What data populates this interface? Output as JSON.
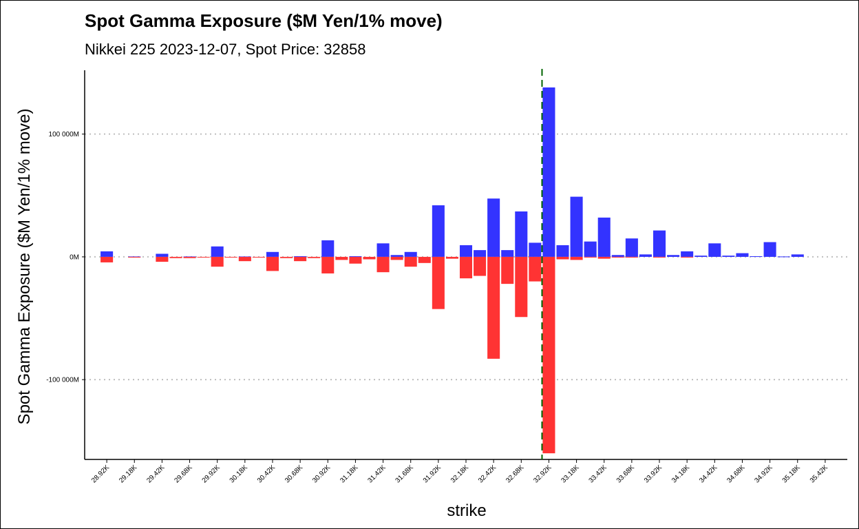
{
  "chart_data": {
    "type": "bar",
    "title": "Spot Gamma Exposure ($M Yen/1% move)",
    "subtitle": "Nikkei 225 2023-12-07, Spot Price: 32858",
    "xlabel": "strike",
    "ylabel": "Spot Gamma Exposure ($M Yen/1% move)",
    "ylim": [
      -165,
      152
    ],
    "y_ticks": [
      {
        "value": 100,
        "label": "100 000M"
      },
      {
        "value": 0,
        "label": "0M"
      },
      {
        "value": -100,
        "label": "-100 000M"
      }
    ],
    "x_range": [
      28720,
      35620
    ],
    "x_ticks": [
      {
        "value": 28920,
        "label": "28.92K"
      },
      {
        "value": 29170,
        "label": "29.18K"
      },
      {
        "value": 29420,
        "label": "29.42K"
      },
      {
        "value": 29670,
        "label": "29.68K"
      },
      {
        "value": 29920,
        "label": "29.92K"
      },
      {
        "value": 30170,
        "label": "30.18K"
      },
      {
        "value": 30420,
        "label": "30.42K"
      },
      {
        "value": 30670,
        "label": "30.68K"
      },
      {
        "value": 30920,
        "label": "30.92K"
      },
      {
        "value": 31170,
        "label": "31.18K"
      },
      {
        "value": 31420,
        "label": "31.42K"
      },
      {
        "value": 31670,
        "label": "31.68K"
      },
      {
        "value": 31920,
        "label": "31.92K"
      },
      {
        "value": 32170,
        "label": "32.18K"
      },
      {
        "value": 32420,
        "label": "32.42K"
      },
      {
        "value": 32670,
        "label": "32.68K"
      },
      {
        "value": 32920,
        "label": "32.92K"
      },
      {
        "value": 33170,
        "label": "33.18K"
      },
      {
        "value": 33420,
        "label": "33.42K"
      },
      {
        "value": 33670,
        "label": "33.68K"
      },
      {
        "value": 33920,
        "label": "33.92K"
      },
      {
        "value": 34170,
        "label": "34.18K"
      },
      {
        "value": 34420,
        "label": "34.42K"
      },
      {
        "value": 34670,
        "label": "34.68K"
      },
      {
        "value": 34920,
        "label": "34.92K"
      },
      {
        "value": 35170,
        "label": "35.18K"
      },
      {
        "value": 35420,
        "label": "35.42K"
      }
    ],
    "spot_price": 32858,
    "grid": "horizontal dotted at y ticks",
    "series": [
      {
        "color": "#3333ff",
        "x": [
          28920,
          29170,
          29420,
          29670,
          29920,
          30170,
          30420,
          30670,
          30920,
          31170,
          31420,
          31545,
          31670,
          31920,
          32170,
          32295,
          32420,
          32545,
          32670,
          32795,
          32920,
          33045,
          33170,
          33295,
          33420,
          33545,
          33670,
          33795,
          33920,
          34045,
          34170,
          34295,
          34420,
          34545,
          34670,
          34795,
          34920,
          35045,
          35170
        ],
        "values": [
          4.5,
          0.3,
          2.5,
          0.3,
          8.5,
          0.3,
          4,
          0.5,
          13.5,
          0.5,
          11,
          1.5,
          4,
          42,
          9.5,
          5.5,
          47.5,
          5.5,
          37,
          11.5,
          138,
          9.5,
          49,
          12.5,
          32,
          1.5,
          15,
          2,
          21.5,
          1.5,
          4.5,
          1,
          11,
          1,
          3,
          0.5,
          12,
          0.3,
          2
        ]
      },
      {
        "color": "#ff3333",
        "x": [
          28920,
          29170,
          29420,
          29545,
          29670,
          29795,
          29920,
          30045,
          30170,
          30295,
          30420,
          30545,
          30670,
          30795,
          30920,
          31045,
          31170,
          31295,
          31420,
          31545,
          31670,
          31795,
          31920,
          32045,
          32170,
          32295,
          32420,
          32545,
          32670,
          32795,
          32920,
          33045,
          33170,
          33295,
          33420,
          33545,
          33670,
          33920,
          34170
        ],
        "values": [
          -4.5,
          -0.5,
          -4,
          -1,
          -1,
          -0.5,
          -8,
          -0.5,
          -3.5,
          -0.5,
          -11.5,
          -1,
          -3.5,
          -1,
          -13.5,
          -2.5,
          -5.5,
          -2,
          -12.5,
          -2.5,
          -8,
          -5,
          -42.5,
          -1.5,
          -17.5,
          -15.5,
          -83,
          -22,
          -49,
          -20,
          -160,
          -2,
          -2.5,
          -0.5,
          -1.5,
          -0.5,
          -0.5,
          -0.5,
          -0.5
        ]
      }
    ]
  }
}
